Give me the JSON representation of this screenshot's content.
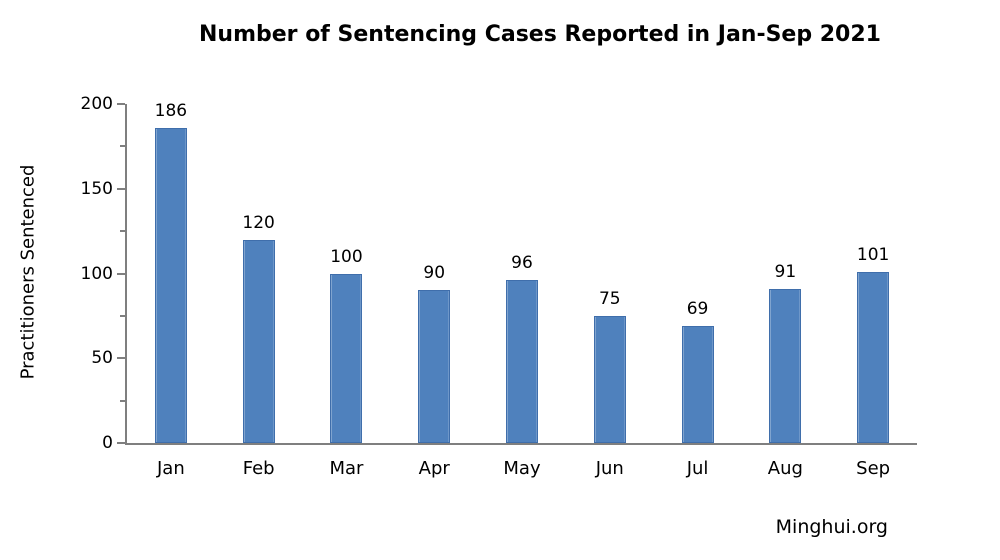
{
  "chart_data": {
    "type": "bar",
    "title": "Number of Sentencing Cases Reported in Jan-Sep 2021",
    "categories": [
      "Jan",
      "Feb",
      "Mar",
      "Apr",
      "May",
      "Jun",
      "Jul",
      "Aug",
      "Sep"
    ],
    "values": [
      186,
      120,
      100,
      90,
      96,
      75,
      69,
      91,
      101
    ],
    "xlabel": "",
    "ylabel": "Practitioners Sentenced",
    "ylim": [
      0,
      200
    ],
    "y_major_ticks": [
      0,
      50,
      100,
      150,
      200
    ],
    "y_minor_ticks": [
      25,
      75,
      125,
      175
    ],
    "grid": false,
    "legend_position": "none",
    "bar_color": "#4f81bd",
    "bar_border_color": "#3f6eab",
    "axis_color": "#7f7f7f",
    "label_color": "#000000"
  },
  "source": {
    "label": "Minghui.org"
  }
}
